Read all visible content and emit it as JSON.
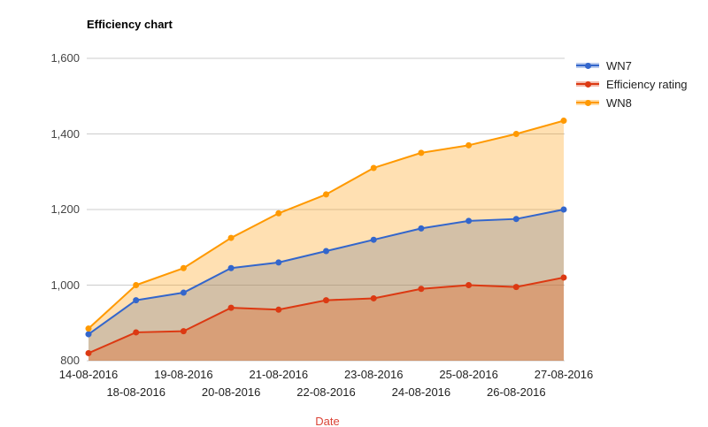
{
  "title": "Efficiency chart",
  "axes": {
    "y_ticks": [
      "800",
      "1,000",
      "1,200",
      "1,400",
      "1,600"
    ],
    "x_title": "Date",
    "x_title_color": "#db4437",
    "gridline_color": "#cccccc",
    "y_label_color": "#444444",
    "x_label_color": "#222222"
  },
  "legend": {
    "position": "right",
    "items": [
      "WN7",
      "Efficiency rating",
      "WN8"
    ]
  },
  "chart_data": {
    "type": "area",
    "title": "Efficiency chart",
    "xlabel": "Date",
    "ylabel": "",
    "ylim": [
      800,
      1600
    ],
    "y_tick_step": 200,
    "grid": true,
    "legend_position": "right",
    "area_opacity": 0.3,
    "point_radius": 3.5,
    "categories": [
      "14-08-2016",
      "18-08-2016",
      "19-08-2016",
      "20-08-2016",
      "21-08-2016",
      "22-08-2016",
      "23-08-2016",
      "24-08-2016",
      "25-08-2016",
      "26-08-2016",
      "27-08-2016"
    ],
    "series": [
      {
        "name": "WN7",
        "color": "#3366cc",
        "values": [
          870,
          960,
          980,
          1045,
          1060,
          1090,
          1120,
          1150,
          1170,
          1175,
          1200
        ]
      },
      {
        "name": "Efficiency rating",
        "color": "#dc3912",
        "values": [
          820,
          875,
          878,
          940,
          935,
          960,
          965,
          990,
          1000,
          995,
          1020
        ]
      },
      {
        "name": "WN8",
        "color": "#ff9900",
        "values": [
          885,
          1000,
          1045,
          1125,
          1190,
          1240,
          1310,
          1350,
          1370,
          1400,
          1435
        ]
      }
    ]
  }
}
